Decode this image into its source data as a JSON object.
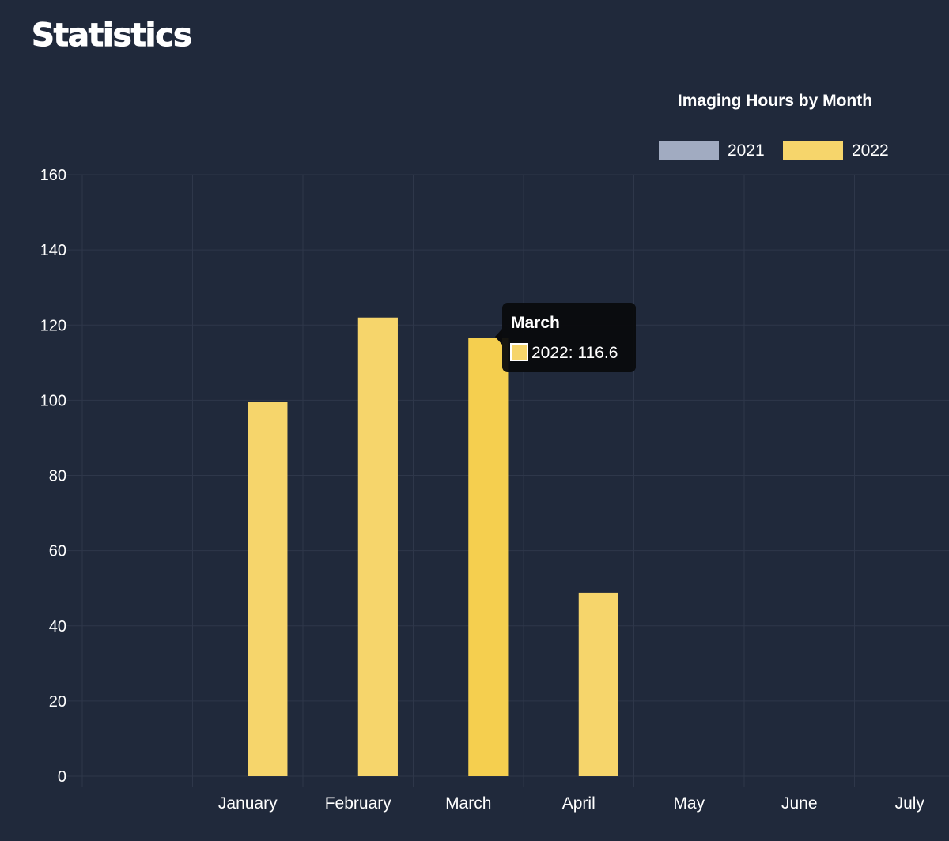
{
  "page": {
    "title": "Statistics"
  },
  "chart_data": {
    "type": "bar",
    "title": "Imaging Hours by Month",
    "categories": [
      "",
      "January",
      "February",
      "March",
      "April",
      "May",
      "June",
      "July"
    ],
    "series": [
      {
        "name": "2021",
        "color": "#a1abc1",
        "values": [
          null,
          null,
          null,
          null,
          null,
          null,
          null,
          null
        ]
      },
      {
        "name": "2022",
        "color": "#f6d56b",
        "values": [
          null,
          99.6,
          122.0,
          116.6,
          48.8,
          null,
          null,
          null
        ]
      }
    ],
    "ylim": [
      0,
      160
    ],
    "yticks": [
      0,
      20,
      40,
      60,
      80,
      100,
      120,
      140,
      160
    ],
    "grid": true,
    "legend": "top-right",
    "tooltip": {
      "title": "March",
      "label": "2022: 116.6",
      "category_index": 3,
      "series_index": 1
    }
  }
}
